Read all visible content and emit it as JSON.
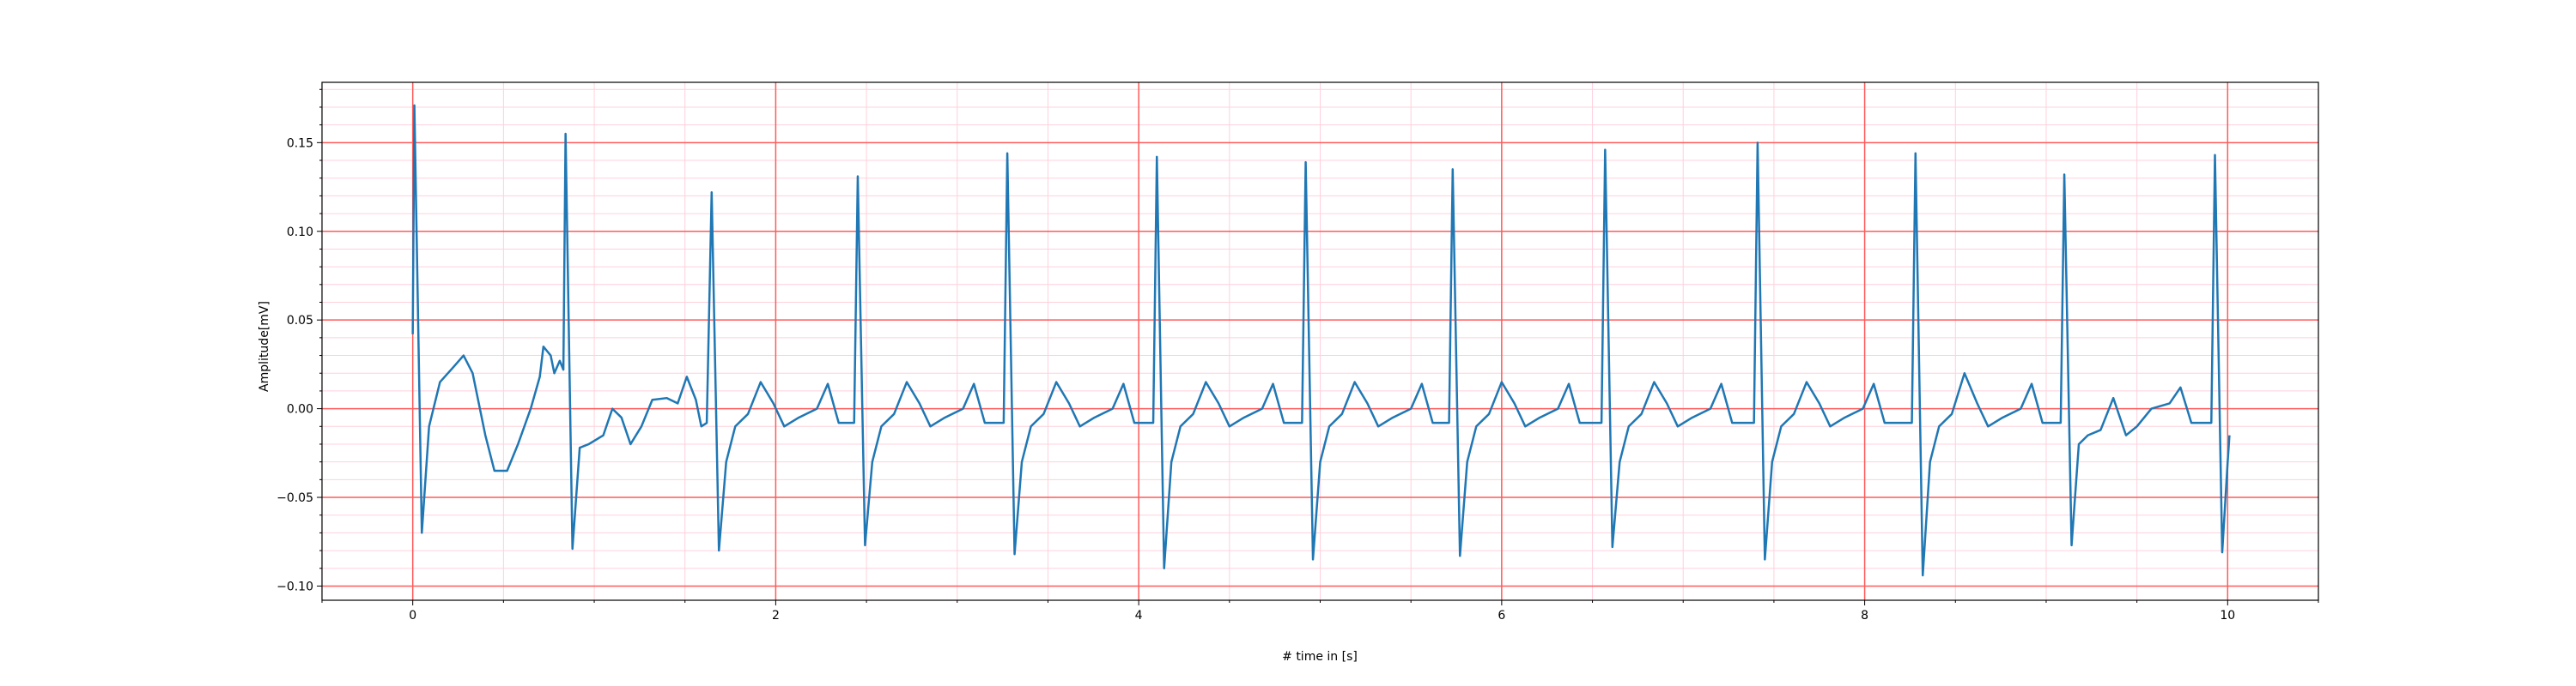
{
  "chart_data": {
    "type": "line",
    "xlabel": "# time in [s]",
    "ylabel": "Amplitude[mV]",
    "xlim": [
      -0.5,
      10.5
    ],
    "ylim": [
      -0.108,
      0.184
    ],
    "xticks": [
      0,
      2,
      4,
      6,
      8,
      10
    ],
    "yticks": [
      {
        "value": -0.1,
        "label": "−0.10"
      },
      {
        "value": -0.05,
        "label": "−0.05"
      },
      {
        "value": 0,
        "label": "0.00"
      },
      0.05,
      {
        "value": 0.1,
        "label": "0.10"
      },
      0.15
    ],
    "xminorticks": [
      -0.5,
      0.5,
      1,
      1.5,
      2.5,
      3,
      3.5,
      4.5,
      5,
      5.5,
      6.5,
      7,
      7.5,
      8.5,
      9,
      9.5,
      10.5
    ],
    "yminorticks": [
      -0.09,
      -0.08,
      -0.07,
      -0.06,
      -0.04,
      -0.03,
      -0.02,
      -0.01,
      0.01,
      0.02,
      0.03,
      0.04,
      0.06,
      0.07,
      0.08,
      0.09,
      0.11,
      0.12,
      0.13,
      0.14,
      0.16,
      0.17,
      0.18
    ],
    "grid": true,
    "major_grid_color": "#ff5a5a",
    "minor_grid_color": "#ffd0dc",
    "series": [
      {
        "color": "#1f77b4",
        "x": [
          0,
          0.009,
          0.05,
          0.09,
          0.15,
          0.22,
          0.28,
          0.33,
          0.4,
          0.45,
          0.52,
          0.58,
          0.65,
          0.7,
          0.72,
          0.76,
          0.78,
          0.81,
          0.83,
          0.842,
          0.88,
          0.92,
          0.97,
          1.05,
          1.1,
          1.15,
          1.2,
          1.26,
          1.32,
          1.4,
          1.46,
          1.51,
          1.56,
          1.59,
          1.62,
          1.647,
          1.687,
          1.727,
          1.777,
          1.847,
          1.917,
          1.987,
          2.047,
          2.127,
          2.227,
          2.287,
          2.347,
          2.432,
          2.452,
          2.492,
          2.532,
          2.582,
          2.652,
          2.722,
          2.792,
          2.852,
          2.932,
          3.032,
          3.092,
          3.152,
          3.256,
          3.276,
          3.316,
          3.356,
          3.406,
          3.476,
          3.546,
          3.616,
          3.676,
          3.756,
          3.856,
          3.916,
          3.976,
          4.08,
          4.1,
          4.14,
          4.18,
          4.23,
          4.3,
          4.37,
          4.44,
          4.5,
          4.58,
          4.68,
          4.74,
          4.8,
          4.9,
          4.92,
          4.96,
          5.0,
          5.05,
          5.12,
          5.19,
          5.26,
          5.32,
          5.4,
          5.5,
          5.56,
          5.62,
          5.71,
          5.73,
          5.77,
          5.81,
          5.86,
          5.93,
          6.0,
          6.07,
          6.13,
          6.21,
          6.31,
          6.37,
          6.43,
          6.55,
          6.57,
          6.61,
          6.65,
          6.7,
          6.77,
          6.84,
          6.91,
          6.97,
          7.05,
          7.15,
          7.21,
          7.27,
          7.39,
          7.41,
          7.45,
          7.49,
          7.54,
          7.61,
          7.68,
          7.75,
          7.81,
          7.89,
          7.99,
          8.05,
          8.11,
          8.26,
          8.28,
          8.32,
          8.36,
          8.41,
          8.48,
          8.55,
          8.62,
          8.68,
          8.76,
          8.86,
          8.92,
          8.98,
          9.08,
          9.1,
          9.14,
          9.18,
          9.23,
          9.3,
          9.37,
          9.44,
          9.5,
          9.58,
          9.68,
          9.74,
          9.8,
          9.91,
          9.93,
          9.97,
          10.0,
          10.01
        ],
        "values": [
          0.042,
          0.171,
          -0.07,
          -0.01,
          0.015,
          0.023,
          0.03,
          0.02,
          -0.015,
          -0.035,
          -0.035,
          -0.02,
          0,
          0.018,
          0.035,
          0.03,
          0.02,
          0.027,
          0.022,
          0.155,
          -0.079,
          -0.022,
          -0.02,
          -0.015,
          0,
          -0.005,
          -0.02,
          -0.01,
          0.005,
          0.006,
          0.003,
          0.018,
          0.005,
          -0.01,
          -0.008,
          0.122,
          -0.08,
          -0.03,
          -0.01,
          -0.003,
          0.015,
          0.003,
          -0.01,
          -0.005,
          0,
          0.014,
          -0.008,
          -0.008,
          0.131,
          -0.077,
          -0.03,
          -0.01,
          -0.003,
          0.015,
          0.003,
          -0.01,
          -0.005,
          0,
          0.014,
          -0.008,
          -0.008,
          0.144,
          -0.082,
          -0.03,
          -0.01,
          -0.003,
          0.015,
          0.003,
          -0.01,
          -0.005,
          0,
          0.014,
          -0.008,
          -0.008,
          0.142,
          -0.09,
          -0.03,
          -0.01,
          -0.003,
          0.015,
          0.003,
          -0.01,
          -0.005,
          0,
          0.014,
          -0.008,
          -0.008,
          0.139,
          -0.085,
          -0.03,
          -0.01,
          -0.003,
          0.015,
          0.003,
          -0.01,
          -0.005,
          0,
          0.014,
          -0.008,
          -0.008,
          0.135,
          -0.083,
          -0.03,
          -0.01,
          -0.003,
          0.015,
          0.003,
          -0.01,
          -0.005,
          0,
          0.014,
          -0.008,
          -0.008,
          0.146,
          -0.078,
          -0.03,
          -0.01,
          -0.003,
          0.015,
          0.003,
          -0.01,
          -0.005,
          0,
          0.014,
          -0.008,
          -0.008,
          0.15,
          -0.085,
          -0.03,
          -0.01,
          -0.003,
          0.015,
          0.003,
          -0.01,
          -0.005,
          0,
          0.014,
          -0.008,
          -0.008,
          0.144,
          -0.094,
          -0.03,
          -0.01,
          -0.003,
          0.02,
          0.003,
          -0.01,
          -0.005,
          0,
          0.014,
          -0.008,
          -0.008,
          0.132,
          -0.077,
          -0.02,
          -0.015,
          -0.012,
          0.006,
          -0.015,
          -0.01,
          0,
          0.003,
          0.012,
          -0.008,
          -0.008,
          0.143,
          -0.081,
          -0.03,
          -0.015
        ]
      }
    ]
  }
}
